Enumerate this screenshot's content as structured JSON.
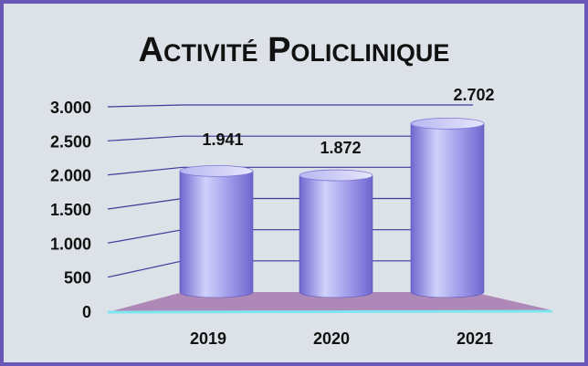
{
  "chart_data": {
    "type": "bar",
    "title": "Activité Policlinique",
    "categories": [
      "2019",
      "2020",
      "2021"
    ],
    "values": [
      1941,
      1872,
      2702
    ],
    "value_labels": [
      "1.941",
      "1.872",
      "2.702"
    ],
    "ylim": [
      0,
      3000
    ],
    "y_ticks": [
      0,
      500,
      1000,
      1500,
      2000,
      2500,
      3000
    ],
    "y_tick_labels": [
      "0",
      "500",
      "1.000",
      "1.500",
      "2.000",
      "2.500",
      "3.000"
    ],
    "grid": true,
    "legend": "none",
    "three_d": true,
    "colors": {
      "background": "#dde2e8",
      "border": "#6a58b8",
      "floor": "#a97fb2",
      "bar_light": "#cfd2fb",
      "bar_dark": "#6f66cf",
      "gridline": "#3e3a9a",
      "axis_base": "#7fe6ef"
    }
  }
}
